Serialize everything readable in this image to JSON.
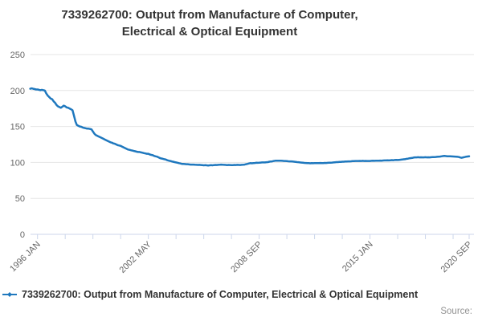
{
  "header": {
    "title": "7339262700: Output from Manufacture of Computer,\nElectrical & Optical Equipment"
  },
  "legend": {
    "label": "7339262700: Output from Manufacture of Computer, Electrical & Optical Equipment"
  },
  "credits": {
    "label": "Source:"
  },
  "colors": {
    "line": "#1f78be",
    "grid": "#e6e6e6",
    "axis": "#ccd6eb",
    "tick_label": "#666666",
    "title": "#333333",
    "credits": "#919191"
  },
  "chart_data": {
    "type": "line",
    "title": "7339262700: Output from Manufacture of Computer, Electrical & Optical Equipment",
    "xlabel": "",
    "ylabel": "",
    "grid": true,
    "legend_position": "bottom-left",
    "y_axis": {
      "min": 0,
      "max": 250,
      "ticks": [
        0,
        50,
        100,
        150,
        200,
        250
      ]
    },
    "x_axis": {
      "frequency": "monthly",
      "start": "1995-08",
      "start_month_index": -5,
      "ticks": [
        {
          "m": 0,
          "label": "1996 JAN"
        },
        {
          "m": 19
        },
        {
          "m": 38
        },
        {
          "m": 57
        },
        {
          "m": 76,
          "label": "2002 MAY"
        },
        {
          "m": 95
        },
        {
          "m": 114
        },
        {
          "m": 133
        },
        {
          "m": 152,
          "label": "2008 SEP"
        },
        {
          "m": 171
        },
        {
          "m": 190
        },
        {
          "m": 209
        },
        {
          "m": 228,
          "label": "2015 JAN"
        },
        {
          "m": 247
        },
        {
          "m": 266
        },
        {
          "m": 285
        },
        {
          "m": 296,
          "label": "2020 SEP"
        }
      ]
    },
    "series": [
      {
        "name": "7339262700: Output from Manufacture of Computer, Electrical & Optical Equipment",
        "color": "#1f78be",
        "values": [
          202.5,
          203,
          202.5,
          202,
          201.5,
          201.5,
          201,
          200.5,
          201,
          200.5,
          200,
          196,
          193,
          191,
          189,
          188,
          185,
          183,
          180,
          178,
          177,
          176,
          177.5,
          179,
          178,
          176.5,
          176,
          175,
          174,
          172.5,
          165,
          157,
          152,
          151,
          150,
          149.5,
          148.5,
          148,
          147.5,
          147,
          147,
          146.5,
          146,
          143,
          140,
          138,
          137,
          136,
          135,
          134,
          133,
          132,
          131,
          130,
          129,
          128,
          127.5,
          126.5,
          126,
          125,
          124,
          123.5,
          123,
          122,
          121,
          120,
          119,
          118,
          117.5,
          117,
          116.5,
          116,
          115.5,
          115,
          114.5,
          114.5,
          114,
          113.5,
          113,
          112.5,
          112,
          112,
          111,
          110.5,
          110,
          109,
          108.5,
          108,
          107,
          106,
          105.5,
          105,
          104.5,
          104,
          103,
          102.5,
          102,
          101.5,
          101,
          100.5,
          100,
          99.5,
          99,
          98.5,
          98,
          98,
          97.8,
          97.5,
          97.5,
          97.2,
          97,
          97,
          97,
          96.8,
          96.6,
          96.5,
          96.7,
          96.4,
          96.2,
          96,
          96.2,
          96,
          95.8,
          96,
          96.2,
          96,
          96.3,
          96.5,
          96.4,
          96.6,
          96.8,
          97,
          96.8,
          96.6,
          96.5,
          96.3,
          96.5,
          96.4,
          96.2,
          96.3,
          96.5,
          96.4,
          96.6,
          96.5,
          96.4,
          96.6,
          96.8,
          97,
          97.5,
          98,
          98.5,
          99,
          98.8,
          99,
          99.2,
          99.5,
          99.4,
          99.6,
          99.8,
          100,
          100,
          100,
          100.3,
          100.5,
          101,
          101.3,
          101.5,
          102,
          102.3,
          102.5,
          102.5,
          102.4,
          102.3,
          102.2,
          102,
          102,
          101.8,
          101.6,
          101.5,
          101.4,
          101.2,
          101,
          100.8,
          100.5,
          100.3,
          100,
          99.8,
          99.5,
          99.3,
          99.2,
          99,
          99,
          98.8,
          99,
          98.9,
          99,
          99.1,
          99,
          99,
          99.2,
          99,
          99.1,
          99.3,
          99.2,
          99.4,
          99.5,
          99.7,
          99.8,
          100,
          100.2,
          100.4,
          100.5,
          100.7,
          100.8,
          101,
          101,
          101.2,
          101.3,
          101.5,
          101.5,
          101.6,
          101.8,
          101.8,
          102,
          102,
          102,
          102.1,
          102,
          102.2,
          102,
          102.1,
          102,
          102,
          102,
          102.2,
          102.3,
          102.2,
          102.4,
          102.5,
          102.4,
          102.6,
          102.5,
          102.7,
          102.8,
          102.8,
          103,
          102.8,
          103,
          103.2,
          103,
          103.3,
          103.5,
          103.4,
          103.6,
          103.8,
          104,
          104.3,
          104.5,
          105,
          105.3,
          105.8,
          106,
          106.3,
          106.8,
          107,
          107,
          107.2,
          107,
          107.1,
          107,
          107,
          107.2,
          107,
          107.1,
          107,
          107.2,
          107.4,
          107.5,
          107.6,
          107.8,
          108,
          108.2,
          108.5,
          108.8,
          109,
          108.8,
          108.6,
          108.5,
          108.5,
          108.4,
          108.3,
          108.2,
          108,
          107.8,
          107.5,
          106.8,
          106.5,
          107,
          107.5,
          108,
          108.3,
          108.5
        ]
      }
    ]
  }
}
